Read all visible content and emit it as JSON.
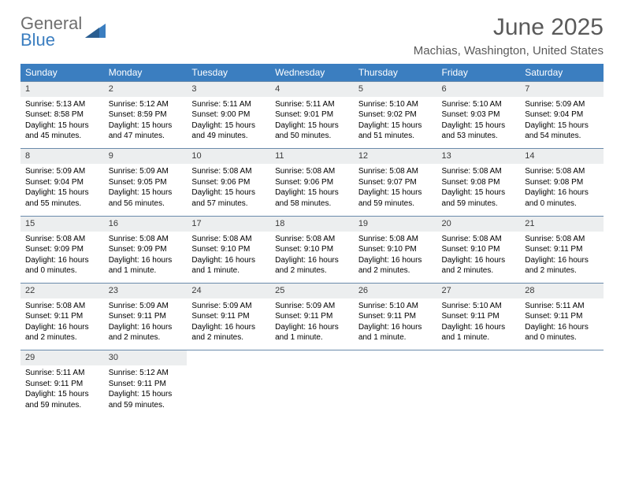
{
  "logo": {
    "word1": "General",
    "word2": "Blue"
  },
  "title": "June 2025",
  "subtitle": "Machias, Washington, United States",
  "colors": {
    "header_bg": "#3b7ec0",
    "header_text": "#ffffff",
    "daynum_bg": "#eceeef",
    "row_divider": "#6a8bab",
    "title_color": "#5a5a5a",
    "logo_gray": "#6e6e6e",
    "logo_blue": "#3b7ec0"
  },
  "weekdays": [
    "Sunday",
    "Monday",
    "Tuesday",
    "Wednesday",
    "Thursday",
    "Friday",
    "Saturday"
  ],
  "weeks": [
    {
      "nums": [
        "1",
        "2",
        "3",
        "4",
        "5",
        "6",
        "7"
      ],
      "cells": [
        {
          "sunrise": "Sunrise: 5:13 AM",
          "sunset": "Sunset: 8:58 PM",
          "daylight": "Daylight: 15 hours and 45 minutes."
        },
        {
          "sunrise": "Sunrise: 5:12 AM",
          "sunset": "Sunset: 8:59 PM",
          "daylight": "Daylight: 15 hours and 47 minutes."
        },
        {
          "sunrise": "Sunrise: 5:11 AM",
          "sunset": "Sunset: 9:00 PM",
          "daylight": "Daylight: 15 hours and 49 minutes."
        },
        {
          "sunrise": "Sunrise: 5:11 AM",
          "sunset": "Sunset: 9:01 PM",
          "daylight": "Daylight: 15 hours and 50 minutes."
        },
        {
          "sunrise": "Sunrise: 5:10 AM",
          "sunset": "Sunset: 9:02 PM",
          "daylight": "Daylight: 15 hours and 51 minutes."
        },
        {
          "sunrise": "Sunrise: 5:10 AM",
          "sunset": "Sunset: 9:03 PM",
          "daylight": "Daylight: 15 hours and 53 minutes."
        },
        {
          "sunrise": "Sunrise: 5:09 AM",
          "sunset": "Sunset: 9:04 PM",
          "daylight": "Daylight: 15 hours and 54 minutes."
        }
      ]
    },
    {
      "nums": [
        "8",
        "9",
        "10",
        "11",
        "12",
        "13",
        "14"
      ],
      "cells": [
        {
          "sunrise": "Sunrise: 5:09 AM",
          "sunset": "Sunset: 9:04 PM",
          "daylight": "Daylight: 15 hours and 55 minutes."
        },
        {
          "sunrise": "Sunrise: 5:09 AM",
          "sunset": "Sunset: 9:05 PM",
          "daylight": "Daylight: 15 hours and 56 minutes."
        },
        {
          "sunrise": "Sunrise: 5:08 AM",
          "sunset": "Sunset: 9:06 PM",
          "daylight": "Daylight: 15 hours and 57 minutes."
        },
        {
          "sunrise": "Sunrise: 5:08 AM",
          "sunset": "Sunset: 9:06 PM",
          "daylight": "Daylight: 15 hours and 58 minutes."
        },
        {
          "sunrise": "Sunrise: 5:08 AM",
          "sunset": "Sunset: 9:07 PM",
          "daylight": "Daylight: 15 hours and 59 minutes."
        },
        {
          "sunrise": "Sunrise: 5:08 AM",
          "sunset": "Sunset: 9:08 PM",
          "daylight": "Daylight: 15 hours and 59 minutes."
        },
        {
          "sunrise": "Sunrise: 5:08 AM",
          "sunset": "Sunset: 9:08 PM",
          "daylight": "Daylight: 16 hours and 0 minutes."
        }
      ]
    },
    {
      "nums": [
        "15",
        "16",
        "17",
        "18",
        "19",
        "20",
        "21"
      ],
      "cells": [
        {
          "sunrise": "Sunrise: 5:08 AM",
          "sunset": "Sunset: 9:09 PM",
          "daylight": "Daylight: 16 hours and 0 minutes."
        },
        {
          "sunrise": "Sunrise: 5:08 AM",
          "sunset": "Sunset: 9:09 PM",
          "daylight": "Daylight: 16 hours and 1 minute."
        },
        {
          "sunrise": "Sunrise: 5:08 AM",
          "sunset": "Sunset: 9:10 PM",
          "daylight": "Daylight: 16 hours and 1 minute."
        },
        {
          "sunrise": "Sunrise: 5:08 AM",
          "sunset": "Sunset: 9:10 PM",
          "daylight": "Daylight: 16 hours and 2 minutes."
        },
        {
          "sunrise": "Sunrise: 5:08 AM",
          "sunset": "Sunset: 9:10 PM",
          "daylight": "Daylight: 16 hours and 2 minutes."
        },
        {
          "sunrise": "Sunrise: 5:08 AM",
          "sunset": "Sunset: 9:10 PM",
          "daylight": "Daylight: 16 hours and 2 minutes."
        },
        {
          "sunrise": "Sunrise: 5:08 AM",
          "sunset": "Sunset: 9:11 PM",
          "daylight": "Daylight: 16 hours and 2 minutes."
        }
      ]
    },
    {
      "nums": [
        "22",
        "23",
        "24",
        "25",
        "26",
        "27",
        "28"
      ],
      "cells": [
        {
          "sunrise": "Sunrise: 5:08 AM",
          "sunset": "Sunset: 9:11 PM",
          "daylight": "Daylight: 16 hours and 2 minutes."
        },
        {
          "sunrise": "Sunrise: 5:09 AM",
          "sunset": "Sunset: 9:11 PM",
          "daylight": "Daylight: 16 hours and 2 minutes."
        },
        {
          "sunrise": "Sunrise: 5:09 AM",
          "sunset": "Sunset: 9:11 PM",
          "daylight": "Daylight: 16 hours and 2 minutes."
        },
        {
          "sunrise": "Sunrise: 5:09 AM",
          "sunset": "Sunset: 9:11 PM",
          "daylight": "Daylight: 16 hours and 1 minute."
        },
        {
          "sunrise": "Sunrise: 5:10 AM",
          "sunset": "Sunset: 9:11 PM",
          "daylight": "Daylight: 16 hours and 1 minute."
        },
        {
          "sunrise": "Sunrise: 5:10 AM",
          "sunset": "Sunset: 9:11 PM",
          "daylight": "Daylight: 16 hours and 1 minute."
        },
        {
          "sunrise": "Sunrise: 5:11 AM",
          "sunset": "Sunset: 9:11 PM",
          "daylight": "Daylight: 16 hours and 0 minutes."
        }
      ]
    },
    {
      "nums": [
        "29",
        "30",
        "",
        "",
        "",
        "",
        ""
      ],
      "cells": [
        {
          "sunrise": "Sunrise: 5:11 AM",
          "sunset": "Sunset: 9:11 PM",
          "daylight": "Daylight: 15 hours and 59 minutes."
        },
        {
          "sunrise": "Sunrise: 5:12 AM",
          "sunset": "Sunset: 9:11 PM",
          "daylight": "Daylight: 15 hours and 59 minutes."
        },
        null,
        null,
        null,
        null,
        null
      ]
    }
  ]
}
